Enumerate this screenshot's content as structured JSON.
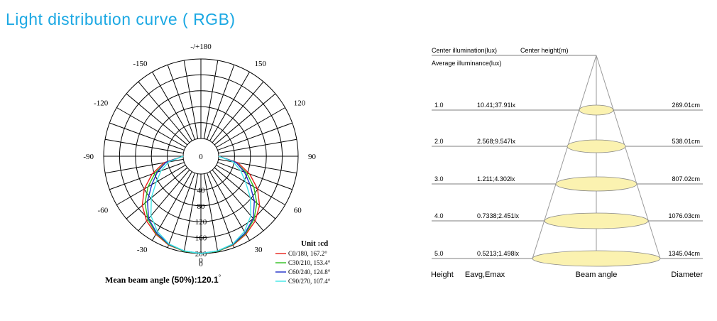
{
  "page_title": "Light distribution curve ( RGB)",
  "colors": {
    "title": "#1ba8e3",
    "grid": "#000000",
    "c0_180": "#e8211a",
    "c30_210": "#2fbf1f",
    "c60_240": "#1f2fc8",
    "c90_270": "#3fe6e6",
    "ellipse_fill": "#fbf2b0",
    "cone_line": "#9a9a9a"
  },
  "chart_data": [
    {
      "type": "polar",
      "angle_labels": [
        "-/+180",
        "150",
        "120",
        "90",
        "60",
        "30",
        "0",
        "-30",
        "-60",
        "-90",
        "-120",
        "-150"
      ],
      "radial_ticks": [
        "0",
        "40",
        "80",
        "120",
        "160",
        "200"
      ],
      "rmax": 200,
      "unit_label": "Unit :cd",
      "beam_label": "Mean beam angle ",
      "beam_label_bold": "(50%):120.1",
      "beam_label_degree": "°",
      "series": [
        {
          "name": "C0/180, 167.2°",
          "color_key": "c0_180",
          "points": [
            [
              0,
              200
            ],
            [
              10,
              198
            ],
            [
              20,
              193
            ],
            [
              30,
              182
            ],
            [
              40,
              168
            ],
            [
              50,
              148
            ],
            [
              60,
              120
            ],
            [
              70,
              86
            ],
            [
              80,
              50
            ],
            [
              90,
              0
            ]
          ]
        },
        {
          "name": "C30/210, 153.4°",
          "color_key": "c30_210",
          "points": [
            [
              0,
              200
            ],
            [
              10,
              198
            ],
            [
              20,
              192
            ],
            [
              30,
              180
            ],
            [
              40,
              163
            ],
            [
              50,
              139
            ],
            [
              60,
              109
            ],
            [
              70,
              78
            ],
            [
              80,
              45
            ],
            [
              90,
              0
            ]
          ]
        },
        {
          "name": "C60/240, 124.8°",
          "color_key": "c60_240",
          "points": [
            [
              0,
              200
            ],
            [
              10,
              197
            ],
            [
              20,
              191
            ],
            [
              30,
              178
            ],
            [
              40,
              160
            ],
            [
              50,
              131
            ],
            [
              60,
              98
            ],
            [
              70,
              72
            ],
            [
              80,
              45
            ],
            [
              90,
              0
            ]
          ]
        },
        {
          "name": "C90/270, 107.4°",
          "color_key": "c90_270",
          "points": [
            [
              0,
              200
            ],
            [
              10,
              197
            ],
            [
              20,
              190
            ],
            [
              30,
              174
            ],
            [
              40,
              151
            ],
            [
              50,
              118
            ],
            [
              60,
              85
            ],
            [
              70,
              62
            ],
            [
              80,
              38
            ],
            [
              90,
              0
            ]
          ]
        }
      ]
    },
    {
      "type": "table",
      "header_line1_a": "Center illumination(lux)",
      "header_line1_b": "Center height(m)",
      "header_line2": "Average illuminance(lux)",
      "columns": [
        "Height",
        "Eavg,Emax",
        "Beam angle",
        "Diameter"
      ],
      "rows": [
        {
          "height": "1.0",
          "eavg_emax": "10.41;37.91lx",
          "diameter": "269.01cm"
        },
        {
          "height": "2.0",
          "eavg_emax": "2.568;9.547lx",
          "diameter": "538.01cm"
        },
        {
          "height": "3.0",
          "eavg_emax": "1.211;4.302lx",
          "diameter": "807.02cm"
        },
        {
          "height": "4.0",
          "eavg_emax": "0.7338;2.451lx",
          "diameter": "1076.03cm"
        },
        {
          "height": "5.0",
          "eavg_emax": "0.5213;1.498lx",
          "diameter": "1345.04cm"
        }
      ]
    }
  ]
}
